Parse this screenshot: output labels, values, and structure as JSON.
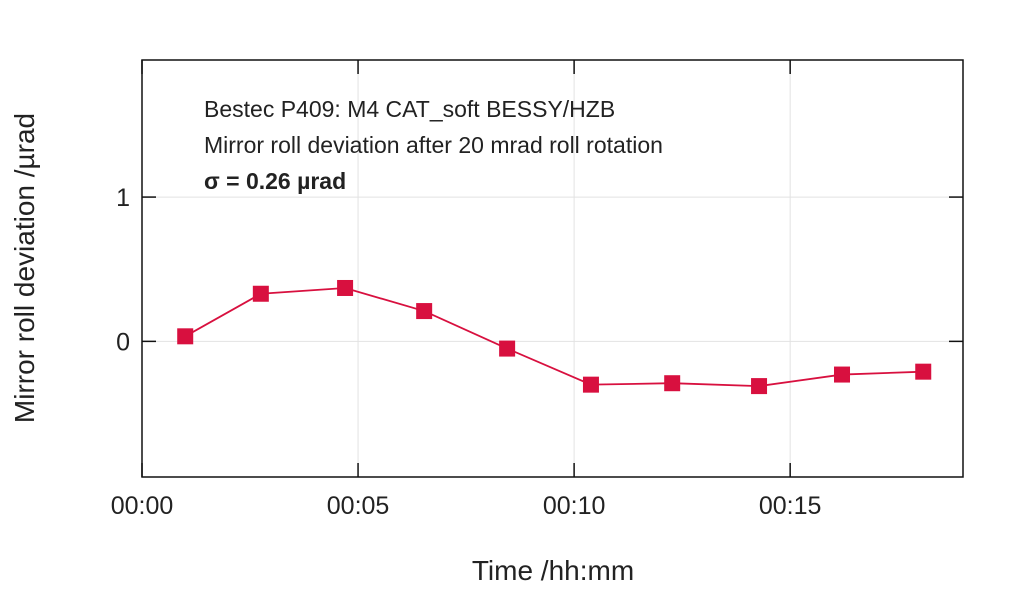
{
  "chart_data": {
    "type": "line",
    "title": "",
    "annotations": [
      "Bestec P409: M4 CAT_soft BESSY/HZB",
      "Mirror roll deviation after 20 mrad roll rotation",
      "σ = 0.26 µrad"
    ],
    "xlabel": "Time /hh:mm",
    "ylabel": "Mirror roll deviation /µrad",
    "xlim": [
      0,
      19
    ],
    "ylim": [
      -0.94,
      1.95
    ],
    "xticks": [
      0,
      5,
      10,
      15
    ],
    "xtick_labels": [
      "00:00",
      "00:05",
      "00:10",
      "00:15"
    ],
    "yticks": [
      0,
      1
    ],
    "ytick_labels": [
      "0",
      "1"
    ],
    "grid": true,
    "series": [
      {
        "name": "roll deviation",
        "color": "#d8103f",
        "marker": "square",
        "x": [
          1.0,
          2.75,
          4.7,
          6.53,
          8.45,
          10.39,
          12.27,
          14.28,
          16.2,
          18.08
        ],
        "y": [
          0.035,
          0.33,
          0.37,
          0.21,
          -0.05,
          -0.3,
          -0.29,
          -0.31,
          -0.23,
          -0.21
        ]
      }
    ]
  }
}
